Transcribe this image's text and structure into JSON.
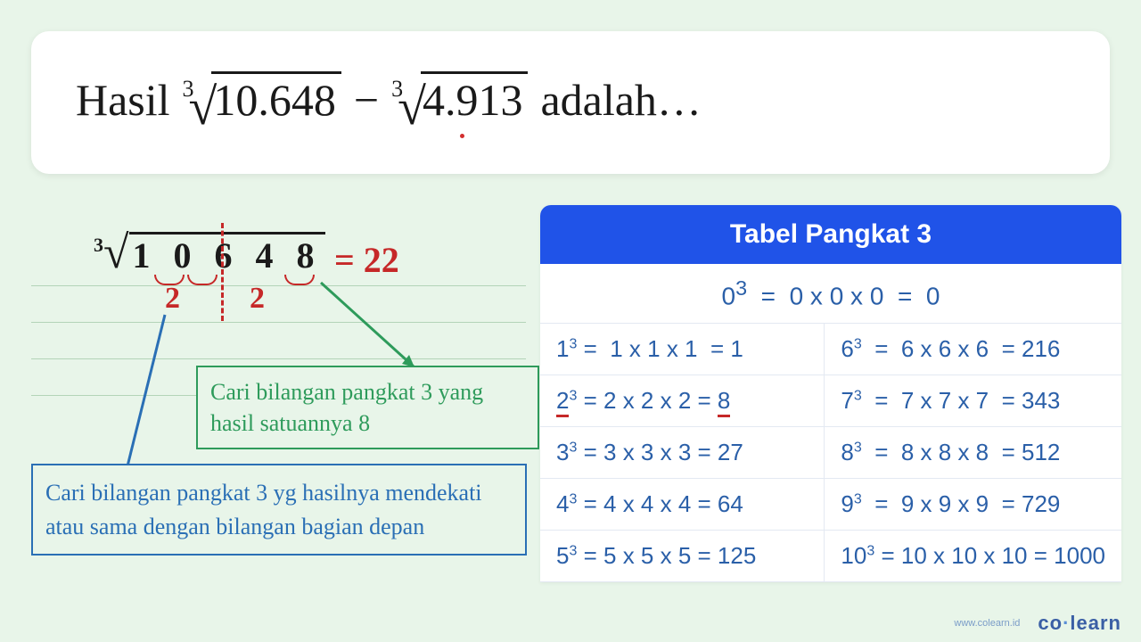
{
  "question": {
    "prefix": "Hasil",
    "radicand1": "10.648",
    "radicand2": "4.913",
    "suffix": "adalah…",
    "index": "3"
  },
  "working": {
    "index": "3",
    "number": "1 0 6 4 8",
    "result": "= 22",
    "mark1": "2",
    "mark2": "2"
  },
  "note_green": "Cari bilangan pangkat 3 yang hasil satuannya 8",
  "note_blue": "Cari bilangan pangkat 3 yg hasilnya mendekati atau sama dengan bilangan bagian depan",
  "table": {
    "title": "Tabel Pangkat 3",
    "row0_html": "0<sup>3</sup>&nbsp;&nbsp;=&nbsp;&nbsp;0 x 0 x 0&nbsp;&nbsp;=&nbsp;&nbsp;0",
    "cells": [
      "1<sup>3</sup> =&nbsp;&nbsp;1 x 1 x 1&nbsp;&nbsp;= 1",
      "6<sup>3</sup>&nbsp;&nbsp;=&nbsp;&nbsp;6 x 6 x 6&nbsp;&nbsp;= 216",
      "<span class='underline-red'>2</span><sup>3</sup> = 2 x 2 x 2 = <span class='underline-red'>8</span>",
      "7<sup>3</sup>&nbsp;&nbsp;=&nbsp;&nbsp;7 x 7 x 7&nbsp;&nbsp;= 343",
      "3<sup>3</sup> = 3 x 3 x 3 = 27",
      "8<sup>3</sup>&nbsp;&nbsp;=&nbsp;&nbsp;8 x 8 x 8&nbsp;&nbsp;= 512",
      "4<sup>3</sup> = 4 x 4 x 4 = 64",
      "9<sup>3</sup>&nbsp;&nbsp;=&nbsp;&nbsp;9 x 9 x 9&nbsp;&nbsp;= 729",
      "5<sup>3</sup> = 5 x 5 x 5 = 125",
      "10<sup>3</sup> = 10 x 10 x 10 = 1000"
    ]
  },
  "footer": {
    "url": "www.colearn.id",
    "brand_pre": "co",
    "brand_post": "learn"
  },
  "colors": {
    "bg": "#e8f5e9",
    "header": "#2053e8",
    "table_text": "#2a5fa8",
    "red": "#c62828",
    "green": "#2e9b5b",
    "blue": "#2a6fb5"
  }
}
